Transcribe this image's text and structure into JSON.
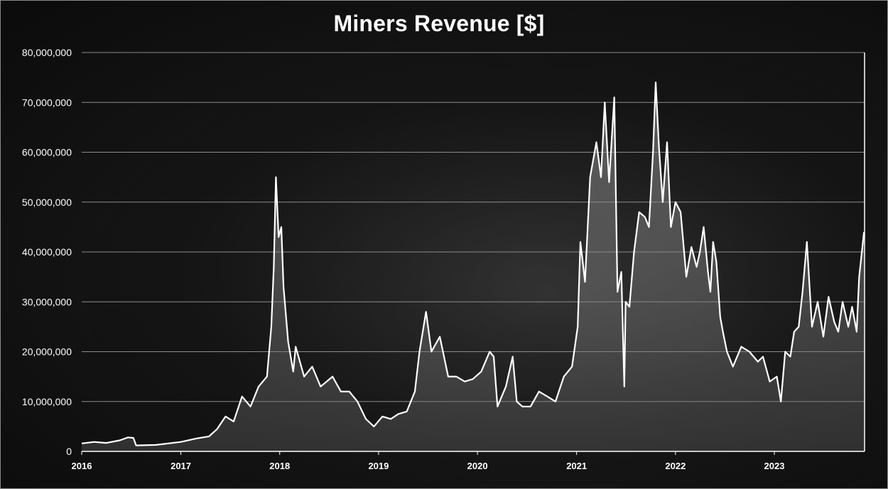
{
  "chart_data": {
    "type": "area",
    "title": "Miners Revenue [$]",
    "xlabel": "",
    "ylabel": "",
    "xlim": [
      "2016-01-01",
      "2023-11-30"
    ],
    "ylim": [
      0,
      80000000
    ],
    "y_ticks": [
      0,
      10000000,
      20000000,
      30000000,
      40000000,
      50000000,
      60000000,
      70000000,
      80000000
    ],
    "y_tick_labels": [
      "0",
      "10,000,000",
      "20,000,000",
      "30,000,000",
      "40,000,000",
      "50,000,000",
      "60,000,000",
      "70,000,000",
      "80,000,000"
    ],
    "x_tick_labels": [
      "2016",
      "2017",
      "2018",
      "2019",
      "2020",
      "2021",
      "2022",
      "2023"
    ],
    "grid": true,
    "legend": "none",
    "series": [
      {
        "line_color": "#ffffff",
        "fill_color": "#9a9a9a",
        "x": [
          "2016-01-01",
          "2016-02-15",
          "2016-04-01",
          "2016-05-20",
          "2016-06-20",
          "2016-07-10",
          "2016-07-20",
          "2016-10-01",
          "2017-01-01",
          "2017-03-01",
          "2017-04-15",
          "2017-05-15",
          "2017-06-15",
          "2017-07-15",
          "2017-08-15",
          "2017-09-15",
          "2017-10-15",
          "2017-11-15",
          "2017-12-01",
          "2017-12-10",
          "2017-12-18",
          "2017-12-28",
          "2018-01-07",
          "2018-01-15",
          "2018-02-01",
          "2018-02-20",
          "2018-03-01",
          "2018-04-01",
          "2018-05-01",
          "2018-06-01",
          "2018-07-15",
          "2018-08-15",
          "2018-09-15",
          "2018-10-15",
          "2018-11-15",
          "2018-12-15",
          "2019-01-15",
          "2019-02-15",
          "2019-03-15",
          "2019-04-15",
          "2019-05-15",
          "2019-06-01",
          "2019-06-25",
          "2019-07-15",
          "2019-08-15",
          "2019-09-15",
          "2019-10-15",
          "2019-11-15",
          "2019-12-15",
          "2020-01-15",
          "2020-02-15",
          "2020-03-01",
          "2020-03-15",
          "2020-04-15",
          "2020-05-10",
          "2020-05-25",
          "2020-06-15",
          "2020-07-15",
          "2020-08-15",
          "2020-09-15",
          "2020-10-15",
          "2020-11-15",
          "2020-12-15",
          "2021-01-05",
          "2021-01-15",
          "2021-02-01",
          "2021-02-20",
          "2021-03-15",
          "2021-04-01",
          "2021-04-15",
          "2021-05-01",
          "2021-05-20",
          "2021-06-01",
          "2021-06-15",
          "2021-06-26",
          "2021-07-01",
          "2021-07-15",
          "2021-08-01",
          "2021-08-20",
          "2021-09-10",
          "2021-09-25",
          "2021-10-10",
          "2021-10-20",
          "2021-11-01",
          "2021-11-15",
          "2021-12-01",
          "2021-12-15",
          "2022-01-01",
          "2022-01-20",
          "2022-02-10",
          "2022-03-01",
          "2022-03-20",
          "2022-04-01",
          "2022-04-15",
          "2022-05-01",
          "2022-05-10",
          "2022-05-20",
          "2022-06-01",
          "2022-06-15",
          "2022-06-25",
          "2022-07-10",
          "2022-08-01",
          "2022-09-01",
          "2022-10-01",
          "2022-11-01",
          "2022-11-20",
          "2022-12-15",
          "2023-01-10",
          "2023-01-25",
          "2023-02-10",
          "2023-03-01",
          "2023-03-15",
          "2023-04-01",
          "2023-04-15",
          "2023-05-01",
          "2023-05-20",
          "2023-06-10",
          "2023-07-01",
          "2023-07-20",
          "2023-08-10",
          "2023-08-25",
          "2023-09-10",
          "2023-10-01",
          "2023-10-15",
          "2023-11-01",
          "2023-11-10",
          "2023-11-20",
          "2023-11-28"
        ],
        "values": [
          1600000,
          1900000,
          1700000,
          2200000,
          2800000,
          2700000,
          1200000,
          1300000,
          1900000,
          2600000,
          3000000,
          4500000,
          7000000,
          6000000,
          11000000,
          9000000,
          13000000,
          15000000,
          25000000,
          37000000,
          55000000,
          43000000,
          45000000,
          33000000,
          22000000,
          16000000,
          21000000,
          15000000,
          17000000,
          13000000,
          15000000,
          12000000,
          12000000,
          10000000,
          6500000,
          5000000,
          7000000,
          6500000,
          7500000,
          8000000,
          12000000,
          20000000,
          28000000,
          20000000,
          23000000,
          15000000,
          15000000,
          14000000,
          14500000,
          16000000,
          20000000,
          19000000,
          9000000,
          13000000,
          19000000,
          10000000,
          9000000,
          9000000,
          12000000,
          11000000,
          10000000,
          15000000,
          17000000,
          25000000,
          42000000,
          34000000,
          55000000,
          62000000,
          55000000,
          70000000,
          54000000,
          71000000,
          32000000,
          36000000,
          13000000,
          30000000,
          29000000,
          40000000,
          48000000,
          47000000,
          45000000,
          60000000,
          74000000,
          61000000,
          50000000,
          62000000,
          45000000,
          50000000,
          48000000,
          35000000,
          41000000,
          37000000,
          40000000,
          45000000,
          36000000,
          32000000,
          42000000,
          38000000,
          27000000,
          24000000,
          20000000,
          17000000,
          21000000,
          20000000,
          18000000,
          19000000,
          14000000,
          15000000,
          10000000,
          20000000,
          19000000,
          24000000,
          25000000,
          32000000,
          42000000,
          25000000,
          30000000,
          23000000,
          31000000,
          26000000,
          24000000,
          30000000,
          25000000,
          29000000,
          24000000,
          35000000,
          40000000,
          44000000
        ]
      }
    ]
  }
}
